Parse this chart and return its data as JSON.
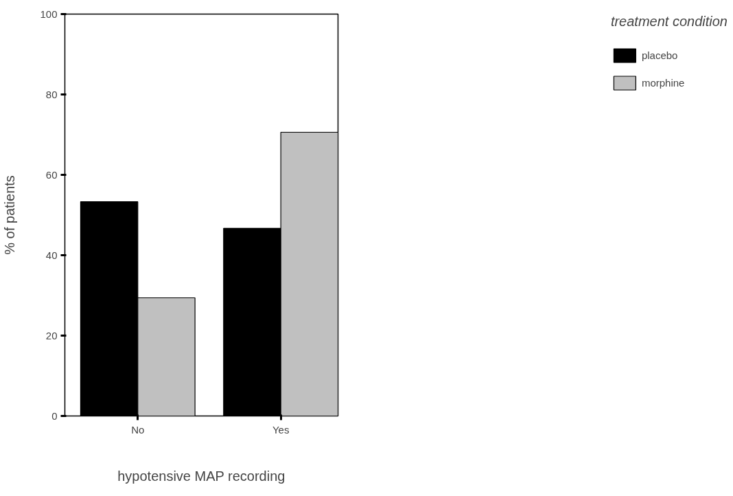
{
  "chart_data": {
    "type": "bar",
    "xlabel": "hypotensive MAP recording",
    "ylabel": "% of patients",
    "legend_title": "treatment condition",
    "categories": [
      "No",
      "Yes"
    ],
    "series": [
      {
        "name": "placebo",
        "color": "#000000",
        "values": [
          53.3,
          46.7
        ]
      },
      {
        "name": "morphine",
        "color": "#c0c0c0",
        "values": [
          29.4,
          70.6
        ]
      }
    ],
    "ylim": [
      0,
      100
    ],
    "yticks": [
      0,
      20,
      40,
      60,
      80,
      100
    ],
    "grid": false,
    "legend": "right"
  }
}
